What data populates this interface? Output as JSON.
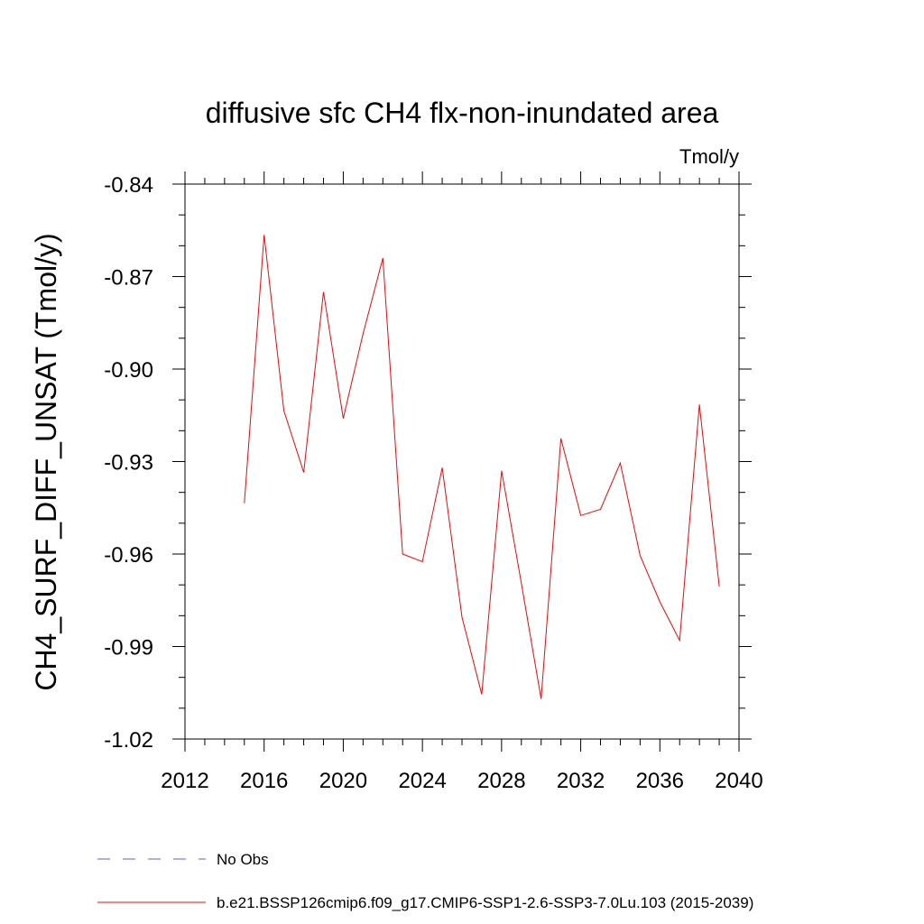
{
  "chart_data": {
    "type": "line",
    "title": "diffusive sfc CH4 flx-non-inundated area",
    "units": "Tmol/y",
    "ylabel": "CH4_SURF_DIFF_UNSAT  (Tmol/y)",
    "xlabel": "",
    "xlim": [
      2012,
      2040
    ],
    "ylim": [
      -1.02,
      -0.84
    ],
    "x_ticks": [
      "2012",
      "2016",
      "2020",
      "2024",
      "2028",
      "2032",
      "2036",
      "2040"
    ],
    "y_ticks": [
      "-0.84",
      "-0.87",
      "-0.90",
      "-0.93",
      "-0.96",
      "-0.99",
      "-1.02"
    ],
    "grid": false,
    "legend_position": "bottom-left",
    "series": [
      {
        "name": "No Obs",
        "color": "#6a5acd",
        "style": "dashed",
        "x": [],
        "y": []
      },
      {
        "name": "b.e21.BSSP126cmip6.f09_g17.CMIP6-SSP1-2.6-SSP3-7.0Lu.103 (2015-2039)",
        "color": "#ff0000",
        "style": "solid",
        "x": [
          2015,
          2016,
          2017,
          2018,
          2019,
          2020,
          2021,
          2022,
          2023,
          2024,
          2025,
          2026,
          2027,
          2028,
          2029,
          2030,
          2031,
          2032,
          2033,
          2034,
          2035,
          2036,
          2037,
          2038,
          2039
        ],
        "y": [
          -0.9435,
          -0.8565,
          -0.9135,
          -0.9335,
          -0.875,
          -0.916,
          -0.8885,
          -0.864,
          -0.96,
          -0.9625,
          -0.932,
          -0.9805,
          -1.0055,
          -0.933,
          -0.9695,
          -1.007,
          -0.9225,
          -0.9475,
          -0.9455,
          -0.9305,
          -0.9605,
          -0.9755,
          -0.988,
          -0.9115,
          -0.9705
        ]
      }
    ]
  }
}
